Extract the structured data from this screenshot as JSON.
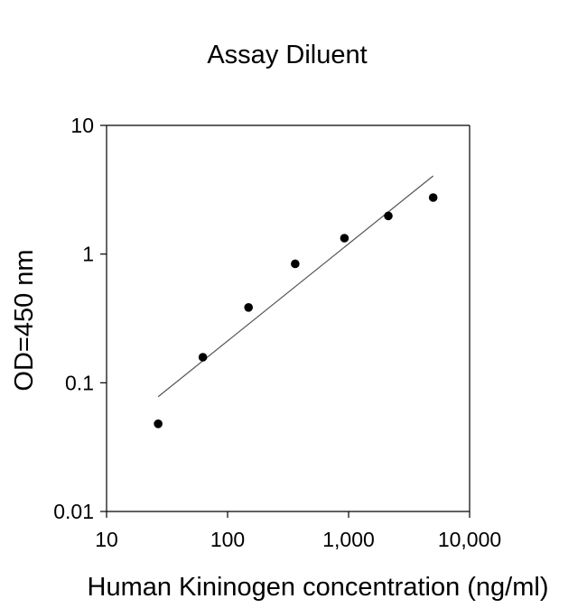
{
  "chart_data": {
    "type": "scatter",
    "title": "Assay Diluent",
    "xlabel": "Human Kininogen concentration (ng/ml)",
    "ylabel": "OD=450 nm",
    "xscale": "log",
    "yscale": "log",
    "xlim": [
      10,
      10000
    ],
    "ylim": [
      0.01,
      10
    ],
    "xticks": [
      10,
      100,
      1000,
      10000
    ],
    "xtick_labels": [
      "10",
      "100",
      "1,000",
      "10,000"
    ],
    "yticks": [
      10,
      1,
      0.1,
      0.01
    ],
    "ytick_labels": [
      "10",
      "1",
      "0.1",
      "0.01"
    ],
    "grid": false,
    "legend": "none",
    "points": [
      {
        "x": 26.7,
        "y": 0.048
      },
      {
        "x": 62.5,
        "y": 0.158
      },
      {
        "x": 149,
        "y": 0.385
      },
      {
        "x": 362,
        "y": 0.84
      },
      {
        "x": 924,
        "y": 1.33
      },
      {
        "x": 2130,
        "y": 1.98
      },
      {
        "x": 5000,
        "y": 2.75
      }
    ],
    "fit_line": {
      "x": [
        26.7,
        5000
      ],
      "y": [
        0.078,
        4.05
      ]
    },
    "colors": {
      "points": "#000000",
      "fit_line": "#555555",
      "axes": "#000000"
    }
  }
}
